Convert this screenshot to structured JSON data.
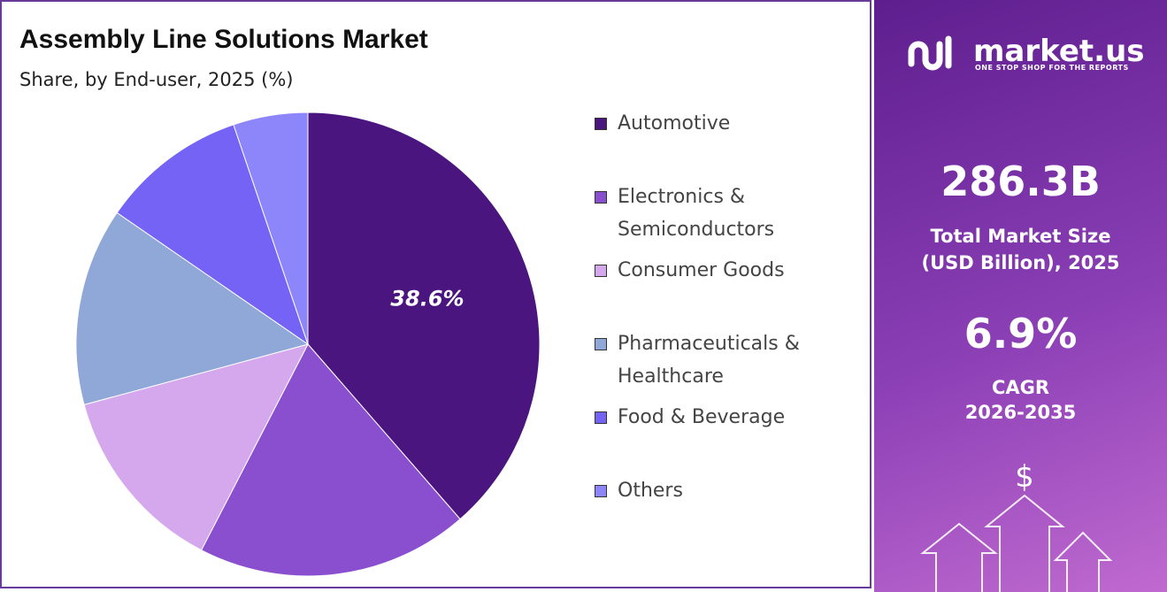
{
  "chart_data": {
    "type": "pie",
    "title": "Assembly Line Solutions Market",
    "subtitle": "Share, by End-user, 2025 (%)",
    "categories": [
      "Automotive",
      "Electronics & Semiconductors",
      "Consumer Goods",
      "Pharmaceuticals & Healthcare",
      "Food & Beverage",
      "Others"
    ],
    "values": [
      38.6,
      19.0,
      13.2,
      13.8,
      10.2,
      5.2
    ],
    "value_labels": [
      "38.6%",
      null,
      null,
      null,
      null,
      null
    ],
    "colors": [
      "#4b1580",
      "#8a4fcf",
      "#d5a8ee",
      "#8fa8d8",
      "#7463f5",
      "#8d86fb"
    ]
  },
  "panel": {
    "brand": "market.us",
    "tagline": "ONE STOP SHOP FOR THE REPORTS",
    "market_size": "286.3B",
    "market_size_label": "Total Market Size (USD Billion), 2025",
    "cagr": "6.9%",
    "cagr_label": "CAGR",
    "cagr_period": "2026-2035"
  }
}
